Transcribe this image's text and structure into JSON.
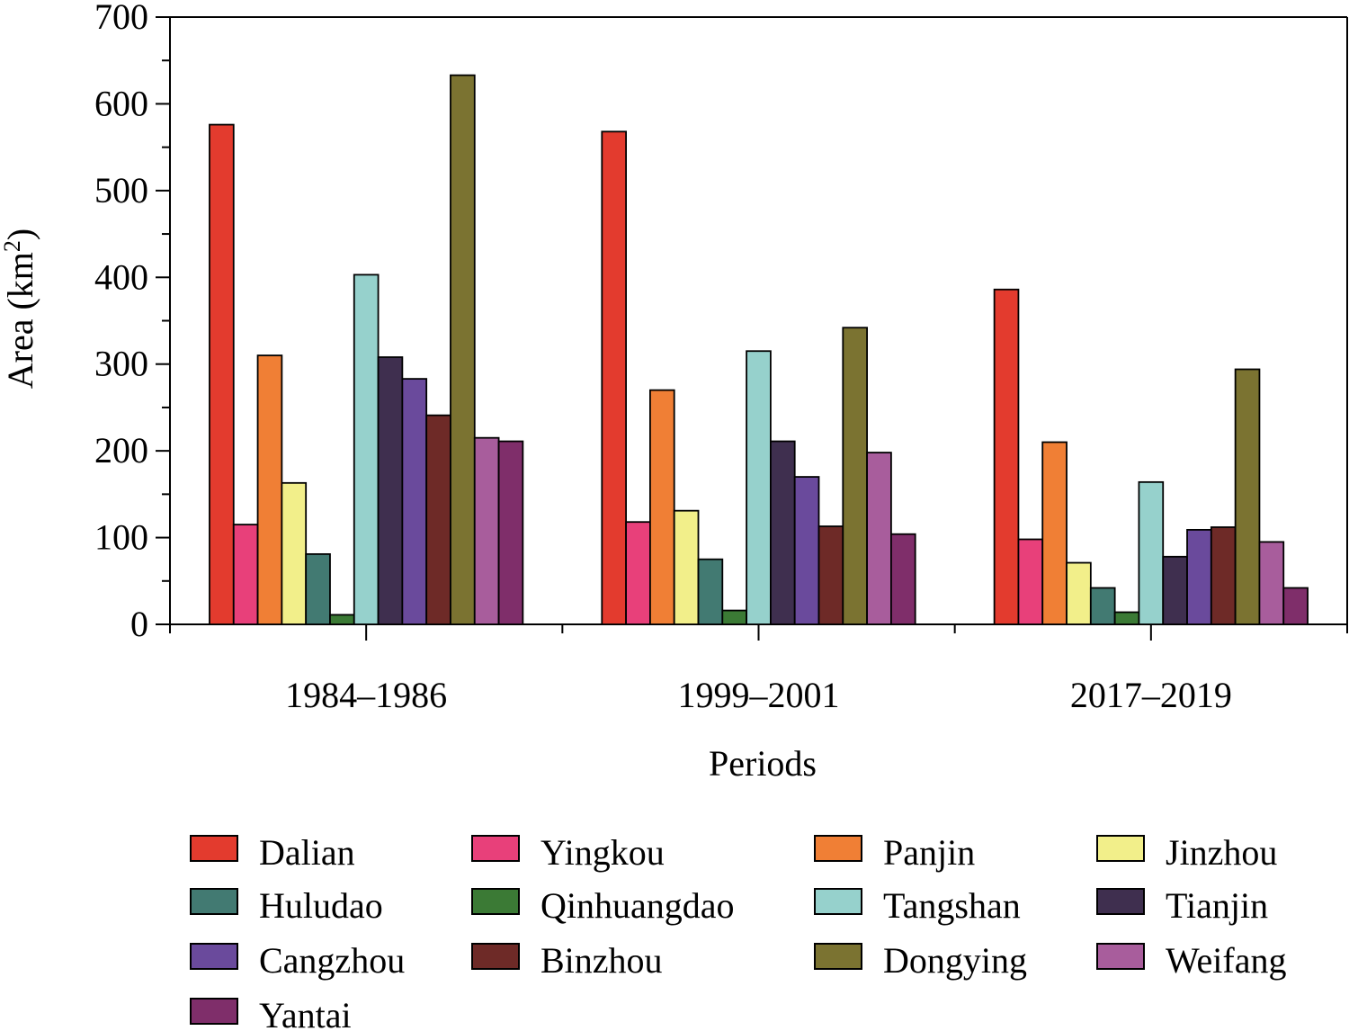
{
  "chart_data": {
    "type": "bar",
    "xlabel": "Periods",
    "ylabel": "Area (km²)",
    "ylabel_base": "Area (km",
    "ylabel_sup": "2",
    "ylabel_close": ")",
    "ylim": [
      0,
      700
    ],
    "yticks": [
      0,
      100,
      200,
      300,
      400,
      500,
      600,
      700
    ],
    "grid": false,
    "legend_position": "bottom",
    "categories": [
      "1984–1986",
      "1999–2001",
      "2017–2019"
    ],
    "series": [
      {
        "name": "Dalian",
        "color": "#e33b2e",
        "values": [
          576,
          568,
          386
        ]
      },
      {
        "name": "Yingkou",
        "color": "#e8407a",
        "values": [
          115,
          118,
          98
        ]
      },
      {
        "name": "Panjin",
        "color": "#f07f35",
        "values": [
          310,
          270,
          210
        ]
      },
      {
        "name": "Jinzhou",
        "color": "#f2ef8a",
        "values": [
          163,
          131,
          71
        ]
      },
      {
        "name": "Huludao",
        "color": "#427a72",
        "values": [
          81,
          75,
          42
        ]
      },
      {
        "name": "Qinhuangdao",
        "color": "#3b7a35",
        "values": [
          11,
          16,
          14
        ]
      },
      {
        "name": "Tangshan",
        "color": "#96d1cc",
        "values": [
          403,
          315,
          164
        ]
      },
      {
        "name": "Tianjin",
        "color": "#3f2f4f",
        "values": [
          308,
          211,
          78
        ]
      },
      {
        "name": "Cangzhou",
        "color": "#6a4a9c",
        "values": [
          283,
          170,
          109
        ]
      },
      {
        "name": "Binzhou",
        "color": "#6e2a27",
        "values": [
          241,
          113,
          112
        ]
      },
      {
        "name": "Dongying",
        "color": "#7b7331",
        "values": [
          633,
          342,
          294
        ]
      },
      {
        "name": "Weifang",
        "color": "#a85d9c",
        "values": [
          215,
          198,
          95
        ]
      },
      {
        "name": "Yantai",
        "color": "#7f2e6a",
        "values": [
          211,
          104,
          42
        ]
      }
    ]
  }
}
